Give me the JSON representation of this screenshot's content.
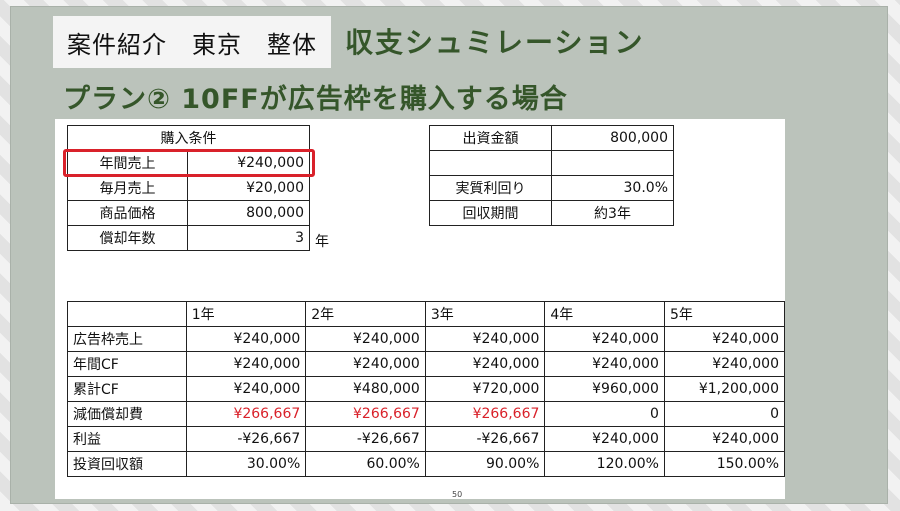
{
  "header": {
    "tag": "案件紹介　東京　整体",
    "title": "収支シュミレーション",
    "subtitle": "プラン② 10FFが広告枠を購入する場合"
  },
  "purchase": {
    "header": "購入条件",
    "rows": [
      {
        "label": "年間売上",
        "value": "¥240,000"
      },
      {
        "label": "毎月売上",
        "value": "¥20,000"
      },
      {
        "label": "商品価格",
        "value": "800,000"
      },
      {
        "label": "償却年数",
        "value": "3"
      }
    ],
    "unit": "年"
  },
  "invest": {
    "rows": [
      {
        "label": "出資金額",
        "value": "800,000"
      },
      {
        "label": "",
        "value": ""
      },
      {
        "label": "実質利回り",
        "value": "30.0%"
      },
      {
        "label": "回収期間",
        "value": "約3年"
      }
    ]
  },
  "years": {
    "headers": [
      "1年",
      "2年",
      "3年",
      "4年",
      "5年"
    ],
    "rows": [
      {
        "label": "広告枠売上",
        "values": [
          "¥240,000",
          "¥240,000",
          "¥240,000",
          "¥240,000",
          "¥240,000"
        ]
      },
      {
        "label": "年間CF",
        "values": [
          "¥240,000",
          "¥240,000",
          "¥240,000",
          "¥240,000",
          "¥240,000"
        ]
      },
      {
        "label": "累計CF",
        "values": [
          "¥240,000",
          "¥480,000",
          "¥720,000",
          "¥960,000",
          "¥1,200,000"
        ]
      },
      {
        "label": "減価償却費",
        "values": [
          "¥266,667",
          "¥266,667",
          "¥266,667",
          "0",
          "0"
        ]
      },
      {
        "label": "利益",
        "values": [
          "-¥26,667",
          "-¥26,667",
          "-¥26,667",
          "¥240,000",
          "¥240,000"
        ]
      },
      {
        "label": "投資回収額",
        "values": [
          "30.00%",
          "60.00%",
          "90.00%",
          "120.00%",
          "150.00%"
        ]
      }
    ]
  },
  "page_number": "50",
  "colors": {
    "title_green": "#35562a",
    "highlight_red": "#d9212a"
  }
}
